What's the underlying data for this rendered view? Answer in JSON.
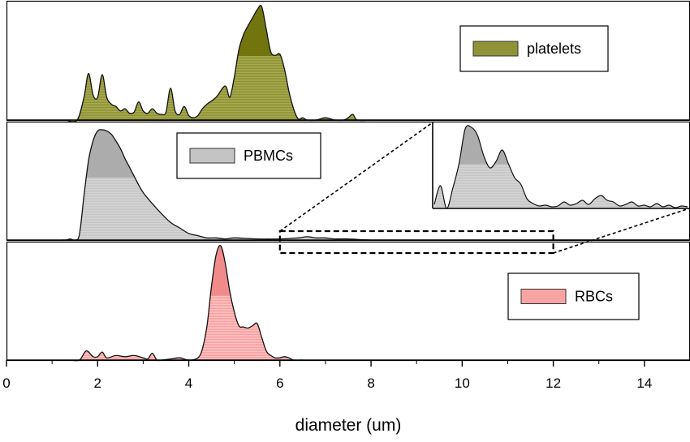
{
  "chart_data": {
    "type": "area",
    "xlabel": "diameter (um)",
    "xlim": [
      0,
      15
    ],
    "xticks": [
      0,
      2,
      4,
      6,
      8,
      10,
      12,
      14
    ],
    "xtick_labels": [
      "0",
      "2",
      "4",
      "6",
      "8",
      "10",
      "12",
      "14"
    ],
    "grid": false,
    "panels": [
      {
        "series": "platelets",
        "legend": "platelets",
        "legend_position": "top-right",
        "fill": "#8f9236",
        "fill_dark": "#6e7008",
        "x": [
          1.3,
          1.55,
          1.7,
          1.8,
          1.9,
          2.0,
          2.1,
          2.2,
          2.3,
          2.4,
          2.5,
          2.6,
          2.7,
          2.8,
          2.9,
          3.0,
          3.1,
          3.2,
          3.3,
          3.4,
          3.5,
          3.6,
          3.7,
          3.8,
          3.9,
          4.0,
          4.1,
          4.2,
          4.3,
          4.4,
          4.6,
          4.8,
          4.9,
          5.0,
          5.1,
          5.2,
          5.3,
          5.4,
          5.5,
          5.6,
          5.7,
          5.8,
          5.9,
          6.0,
          6.1,
          6.2,
          6.3,
          6.4,
          6.5,
          6.6,
          6.8,
          7.0,
          7.2,
          7.4,
          7.5,
          7.6,
          7.7,
          8.0
        ],
        "y": [
          0,
          0,
          0.2,
          0.41,
          0.22,
          0.2,
          0.4,
          0.2,
          0.14,
          0.12,
          0.08,
          0.1,
          0.06,
          0.07,
          0.16,
          0.08,
          0.06,
          0.1,
          0.06,
          0.05,
          0.07,
          0.28,
          0.08,
          0.05,
          0.12,
          0.04,
          0.02,
          0.04,
          0.1,
          0.14,
          0.2,
          0.3,
          0.2,
          0.38,
          0.62,
          0.75,
          0.83,
          0.9,
          0.97,
          1.0,
          0.8,
          0.6,
          0.57,
          0.58,
          0.45,
          0.25,
          0.1,
          0.01,
          0.02,
          0.0,
          0.0,
          0.02,
          0.0,
          0.0,
          0.02,
          0.05,
          0.0,
          0
        ]
      },
      {
        "series": "PBMCs",
        "legend": "PBMCs",
        "legend_position": "top-center",
        "fill": "#c4c4c4",
        "fill_dark": "#a8a8a8",
        "x": [
          1.2,
          1.3,
          1.4,
          1.5,
          1.6,
          1.7,
          1.8,
          1.9,
          2.0,
          2.1,
          2.2,
          2.3,
          2.4,
          2.5,
          2.6,
          2.7,
          2.8,
          2.9,
          3.0,
          3.2,
          3.4,
          3.6,
          3.8,
          4.0,
          4.2,
          4.4,
          4.6,
          4.8,
          5.0,
          5.5,
          6.0,
          6.4,
          6.6,
          6.8,
          7.0,
          7.2,
          7.5,
          8.0,
          9.0,
          10.0,
          11.0,
          12.0,
          13.0,
          14.0,
          15.0
        ],
        "y": [
          0,
          0,
          0.01,
          0,
          0.05,
          0.4,
          0.72,
          0.9,
          0.99,
          1.0,
          0.99,
          0.96,
          0.9,
          0.83,
          0.74,
          0.66,
          0.58,
          0.5,
          0.43,
          0.33,
          0.24,
          0.16,
          0.11,
          0.06,
          0.04,
          0.02,
          0.02,
          0.01,
          0.02,
          0.01,
          0.01,
          0.02,
          0.03,
          0.02,
          0.02,
          0.01,
          0.01,
          0.0,
          0.0,
          0.0,
          0.0,
          0.0,
          0.0,
          0.0,
          0
        ]
      },
      {
        "series": "RBCs",
        "legend": "RBCs",
        "legend_position": "center-right",
        "fill": "#f9a4a4",
        "fill_dark": "#ef8686",
        "x": [
          1.4,
          1.6,
          1.75,
          1.9,
          2.0,
          2.1,
          2.2,
          2.4,
          2.6,
          2.8,
          3.0,
          3.1,
          3.2,
          3.3,
          3.4,
          3.6,
          3.8,
          4.0,
          4.2,
          4.3,
          4.4,
          4.5,
          4.6,
          4.7,
          4.8,
          4.9,
          5.0,
          5.1,
          5.2,
          5.3,
          5.4,
          5.5,
          5.6,
          5.7,
          5.8,
          5.9,
          6.0,
          6.1,
          6.2,
          6.3,
          6.5
        ],
        "y": [
          0,
          0.0,
          0.08,
          0.03,
          0.03,
          0.07,
          0.02,
          0.04,
          0.03,
          0.04,
          0.02,
          0.01,
          0.06,
          0.0,
          0.0,
          0.01,
          0.02,
          0.0,
          0.02,
          0.1,
          0.3,
          0.65,
          0.92,
          1.0,
          0.85,
          0.6,
          0.42,
          0.3,
          0.29,
          0.28,
          0.3,
          0.32,
          0.2,
          0.08,
          0.04,
          0.02,
          0.02,
          0.03,
          0.02,
          0.0,
          0
        ]
      }
    ],
    "inset": {
      "source_xrange": [
        6,
        12
      ],
      "fill": "#c4c4c4",
      "fill_dark": "#a8a8a8",
      "y": [
        0.05,
        0.28,
        0.0,
        0.25,
        0.55,
        0.98,
        1.0,
        0.9,
        0.65,
        0.5,
        0.58,
        0.72,
        0.55,
        0.38,
        0.3,
        0.12,
        0.06,
        0.03,
        0.04,
        0.02,
        0.03,
        0.08,
        0.04,
        0.06,
        0.1,
        0.05,
        0.12,
        0.16,
        0.1,
        0.08,
        0.03,
        0.05,
        0.08,
        0.03,
        0.04,
        0.02,
        0.06,
        0.02,
        0.04,
        0.01,
        0.03,
        0.02
      ]
    }
  }
}
